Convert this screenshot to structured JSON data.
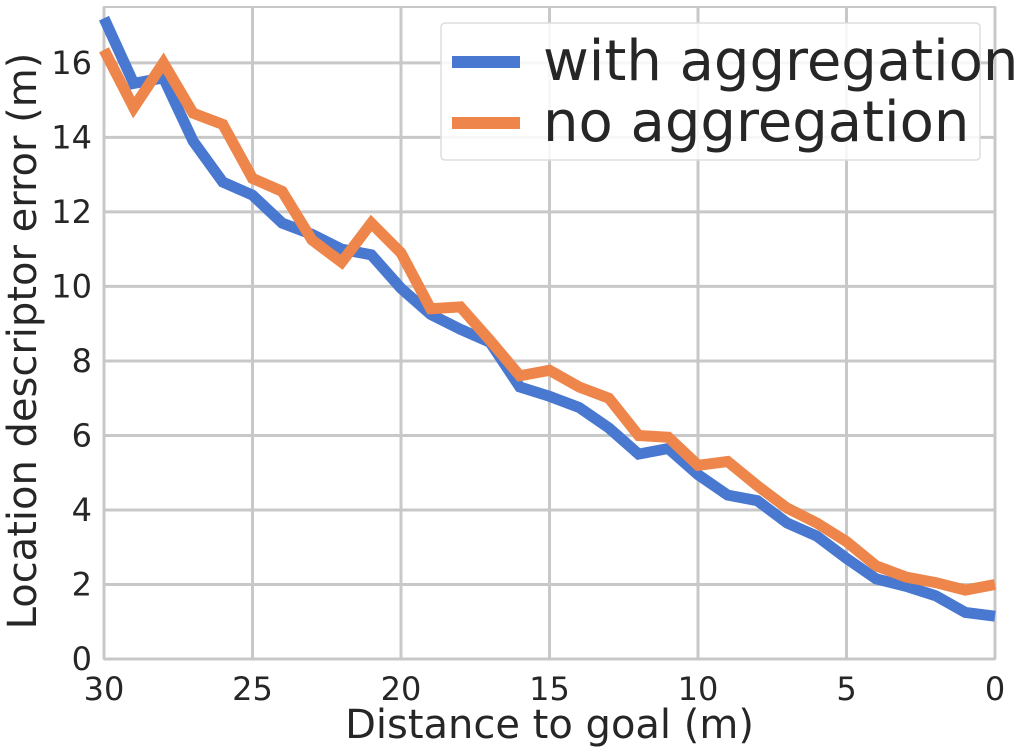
{
  "chart_data": {
    "type": "line",
    "title": "",
    "xlabel": "Distance to goal (m)",
    "ylabel": "Location descriptor error (m)",
    "xlim": [
      30,
      0
    ],
    "ylim": [
      0,
      17.5
    ],
    "x_reversed": true,
    "xticks": [
      30,
      25,
      20,
      15,
      10,
      5,
      0
    ],
    "yticks": [
      0,
      2,
      4,
      6,
      8,
      10,
      12,
      14,
      16
    ],
    "grid": true,
    "legend_position": "top-right",
    "x": [
      30,
      29,
      28,
      27,
      26,
      25,
      24,
      23,
      22,
      21,
      20,
      19,
      18,
      17,
      16,
      15,
      14,
      13,
      12,
      11,
      10,
      9,
      8,
      7,
      6,
      5,
      4,
      3,
      2,
      1,
      0
    ],
    "series": [
      {
        "name": "with aggregation",
        "color": "#4878d0",
        "values": [
          17.2,
          15.45,
          15.6,
          13.9,
          12.8,
          12.45,
          11.7,
          11.4,
          11.0,
          10.85,
          9.95,
          9.25,
          8.85,
          8.5,
          7.3,
          7.05,
          6.75,
          6.2,
          5.5,
          5.65,
          4.95,
          4.4,
          4.25,
          3.65,
          3.3,
          2.7,
          2.15,
          1.95,
          1.7,
          1.25,
          1.15
        ]
      },
      {
        "name": "no aggregation",
        "color": "#ee854a",
        "values": [
          16.35,
          14.8,
          16.0,
          14.65,
          14.35,
          12.9,
          12.55,
          11.25,
          10.65,
          11.7,
          10.9,
          9.4,
          9.45,
          8.55,
          7.6,
          7.75,
          7.3,
          7.0,
          6.0,
          5.95,
          5.2,
          5.3,
          4.65,
          4.05,
          3.65,
          3.15,
          2.5,
          2.2,
          2.05,
          1.85,
          2.0
        ]
      }
    ]
  }
}
